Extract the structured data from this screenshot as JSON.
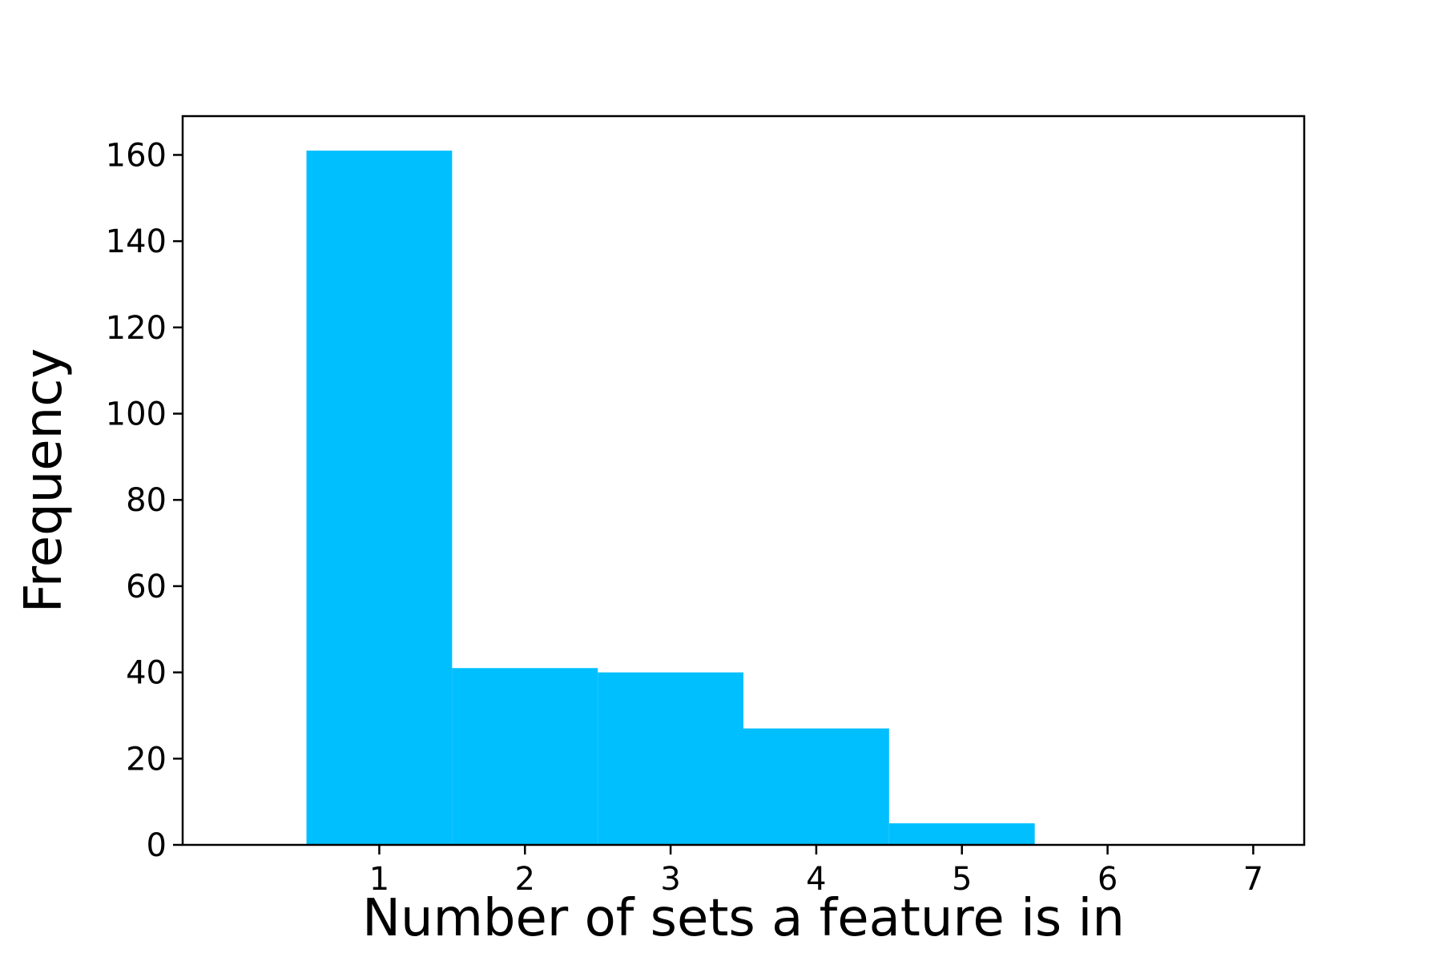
{
  "chart_data": {
    "type": "bar",
    "subtype": "histogram",
    "title": "",
    "xlabel": "Number of sets a feature is in",
    "ylabel": "Frequency",
    "bins": [
      {
        "x": 1,
        "value": 161
      },
      {
        "x": 2,
        "value": 41
      },
      {
        "x": 3,
        "value": 40
      },
      {
        "x": 4,
        "value": 27
      },
      {
        "x": 5,
        "value": 5
      },
      {
        "x": 6,
        "value": 0
      },
      {
        "x": 7,
        "value": 0
      }
    ],
    "bin_width": 1,
    "xlim": [
      -0.35,
      7.35
    ],
    "ylim": [
      0,
      169
    ],
    "xticks": [
      "1",
      "2",
      "3",
      "4",
      "5",
      "6",
      "7"
    ],
    "yticks": [
      "0",
      "20",
      "40",
      "60",
      "80",
      "100",
      "120",
      "140",
      "160"
    ],
    "bar_color": "#00BFFF",
    "grid": false,
    "legend": "none"
  }
}
